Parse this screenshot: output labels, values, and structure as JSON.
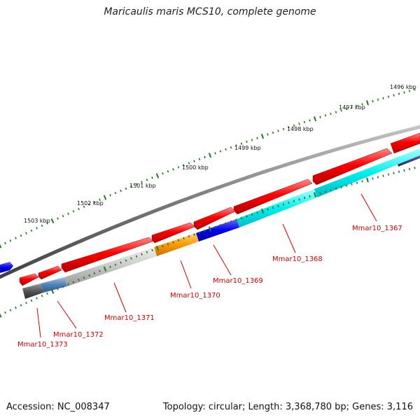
{
  "title": "Maricaulis maris MCS10, complete genome",
  "accession": "Accession: NC_008347",
  "stats": "Topology: circular; Length: 3,368,780 bp; Genes: 3,116",
  "scale_labels": [
    "1496 kbp",
    "1497 kbp",
    "1498 kbp",
    "1499 kbp",
    "1500 kbp",
    "1501 kbp",
    "1502 kbp",
    "1503 kbp"
  ],
  "gene_labels": [
    "Mmar10_1367",
    "Mmar10_1368",
    "Mmar10_1369",
    "Mmar10_1370",
    "Mmar10_1371",
    "Mmar10_1372",
    "Mmar10_1373"
  ],
  "colors": {
    "forward_feature": "#ee0000",
    "backbone": "#777777",
    "tick": "#1a7a1a",
    "label": "#cc0000",
    "cyan": "#00e5ee",
    "blue": "#0000dd",
    "orange": "#ff9900",
    "light_gray": "#c8c8c8",
    "steel_blue": "#4f81b8",
    "dark_gray": "#555555",
    "slate": "#4a4a8a"
  }
}
